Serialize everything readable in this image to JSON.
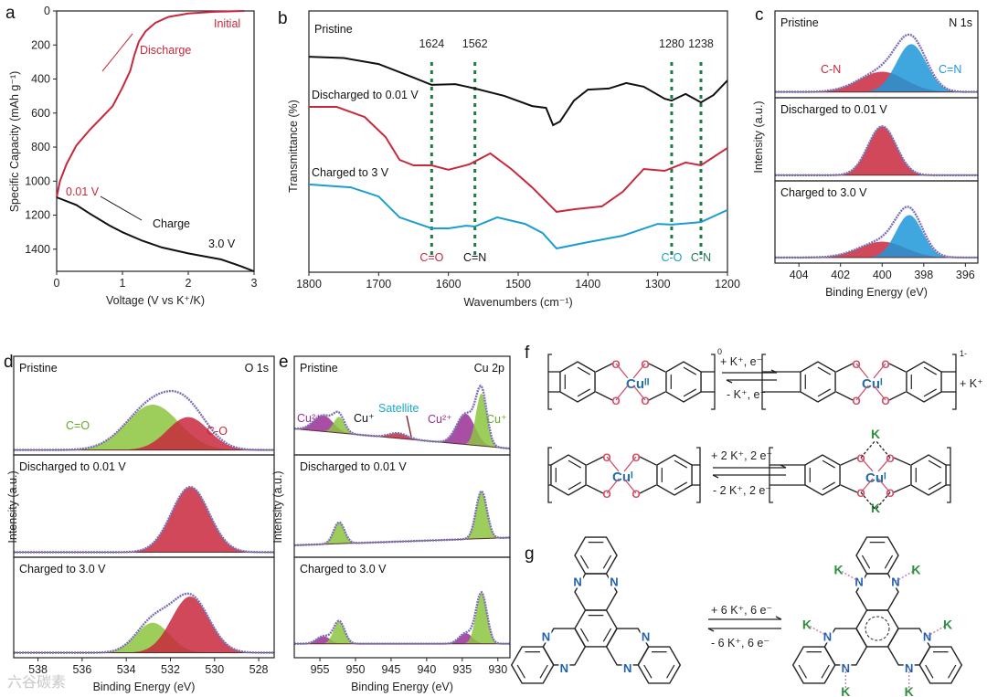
{
  "panel_labels": [
    "a",
    "b",
    "c",
    "d",
    "e",
    "f",
    "g"
  ],
  "colors": {
    "red": "#c8283c",
    "black": "#111111",
    "blue": "#1b9dcf",
    "green_dash": "#1f7a4a",
    "purple": "#9a2f95",
    "lime": "#8cc63f",
    "sky": "#1e98d8",
    "envelope": "#7b70b5",
    "cu": "#1f6fa8",
    "oxygen": "#d0506a",
    "nitrogen": "#1f5fb0",
    "potassium": "#2f8f3f"
  },
  "chart_data": [
    {
      "id": "a",
      "type": "line",
      "xlabel": "Voltage (V vs K⁺/K)",
      "ylabel": "Specific Capacity (mAh g⁻¹)",
      "xlim": [
        0,
        3
      ],
      "ylim": [
        0,
        1530
      ],
      "y_inverted": true,
      "xticks": [
        0,
        1,
        2,
        3
      ],
      "yticks": [
        0,
        200,
        400,
        600,
        800,
        1000,
        1200,
        1400
      ],
      "series": [
        {
          "name": "Discharge",
          "color": "red",
          "points": [
            [
              2.85,
              0
            ],
            [
              2.4,
              5
            ],
            [
              2.0,
              15
            ],
            [
              1.7,
              35
            ],
            [
              1.5,
              70
            ],
            [
              1.35,
              120
            ],
            [
              1.25,
              180
            ],
            [
              1.18,
              260
            ],
            [
              1.12,
              350
            ],
            [
              1.0,
              450
            ],
            [
              0.85,
              560
            ],
            [
              0.7,
              620
            ],
            [
              0.5,
              700
            ],
            [
              0.3,
              790
            ],
            [
              0.15,
              900
            ],
            [
              0.05,
              1000
            ],
            [
              0,
              1095
            ]
          ]
        },
        {
          "name": "Charge",
          "color": "black",
          "points": [
            [
              0,
              1095
            ],
            [
              0.3,
              1140
            ],
            [
              0.5,
              1190
            ],
            [
              0.8,
              1260
            ],
            [
              1.0,
              1300
            ],
            [
              1.3,
              1350
            ],
            [
              1.6,
              1390
            ],
            [
              2.0,
              1425
            ],
            [
              2.5,
              1460
            ],
            [
              2.8,
              1500
            ],
            [
              3.0,
              1530
            ]
          ]
        }
      ],
      "annotations": {
        "initial": "Initial",
        "discharge": "Discharge",
        "v001": "0.01 V",
        "charge": "Charge",
        "v30": "3.0 V"
      }
    },
    {
      "id": "b",
      "type": "line",
      "xlabel": "Wavenumbers (cm⁻¹)",
      "ylabel": "Transmittance (%)",
      "xlim": [
        1800,
        1200
      ],
      "ylim": [
        0,
        100
      ],
      "xticks": [
        1800,
        1700,
        1600,
        1500,
        1400,
        1300,
        1200
      ],
      "series": [
        {
          "name": "Pristine",
          "color": "black",
          "points": [
            [
              1800,
              82.5
            ],
            [
              1750,
              82
            ],
            [
              1700,
              79.7
            ],
            [
              1650,
              74.5
            ],
            [
              1624,
              71.7
            ],
            [
              1590,
              72
            ],
            [
              1562,
              70.3
            ],
            [
              1520,
              67.5
            ],
            [
              1480,
              63.6
            ],
            [
              1460,
              62.9
            ],
            [
              1450,
              56.3
            ],
            [
              1440,
              57.7
            ],
            [
              1420,
              65.7
            ],
            [
              1400,
              69.9
            ],
            [
              1370,
              70.3
            ],
            [
              1345,
              72.4
            ],
            [
              1320,
              71
            ],
            [
              1290,
              66.4
            ],
            [
              1280,
              65.7
            ],
            [
              1260,
              68.2
            ],
            [
              1238,
              65
            ],
            [
              1220,
              67.8
            ],
            [
              1200,
              73.4
            ]
          ]
        },
        {
          "name": "Discharged to 0.01 V",
          "color": "red",
          "points": [
            [
              1800,
              63.3
            ],
            [
              1760,
              63.3
            ],
            [
              1720,
              59.4
            ],
            [
              1690,
              51.7
            ],
            [
              1670,
              43
            ],
            [
              1650,
              40.9
            ],
            [
              1624,
              40.9
            ],
            [
              1600,
              39.2
            ],
            [
              1570,
              41.3
            ],
            [
              1540,
              45.5
            ],
            [
              1510,
              39.5
            ],
            [
              1480,
              32.5
            ],
            [
              1445,
              23.1
            ],
            [
              1420,
              24.1
            ],
            [
              1380,
              25.2
            ],
            [
              1350,
              30.8
            ],
            [
              1320,
              39.5
            ],
            [
              1290,
              38.8
            ],
            [
              1260,
              42
            ],
            [
              1238,
              40.9
            ],
            [
              1200,
              47.6
            ]
          ]
        },
        {
          "name": "Charged to 3 V",
          "color": "blue",
          "points": [
            [
              1800,
              33.6
            ],
            [
              1740,
              32.5
            ],
            [
              1700,
              29
            ],
            [
              1670,
              21
            ],
            [
              1624,
              16.8
            ],
            [
              1600,
              16.8
            ],
            [
              1575,
              17.8
            ],
            [
              1562,
              17.5
            ],
            [
              1530,
              21
            ],
            [
              1490,
              18.5
            ],
            [
              1465,
              15
            ],
            [
              1445,
              9.1
            ],
            [
              1400,
              11.5
            ],
            [
              1350,
              14
            ],
            [
              1300,
              18.5
            ],
            [
              1280,
              18.2
            ],
            [
              1238,
              19.2
            ],
            [
              1200,
              23.8
            ]
          ]
        }
      ],
      "markers": [
        {
          "x": 1624,
          "label": "1624",
          "bond": "C=O",
          "bond_color": "red"
        },
        {
          "x": 1562,
          "label": "1562",
          "bond": "C=N",
          "bond_color": "black"
        },
        {
          "x": 1280,
          "label": "1280",
          "bond": "C-O",
          "bond_color": "blue"
        },
        {
          "x": 1238,
          "label": "1238",
          "bond": "C-N",
          "bond_color": "green_dash"
        }
      ]
    },
    {
      "id": "c",
      "type": "area",
      "title": "N 1s",
      "xlabel": "Binding Energy (eV)",
      "ylabel": "Intensity (a.u.)",
      "xlim": [
        405.15,
        395.4
      ],
      "xticks": [
        404,
        402,
        400,
        398,
        396
      ],
      "panels": [
        {
          "name": "Pristine",
          "baseline": [
            0.05,
            0.05
          ],
          "peaks": [
            {
              "label": "C-N",
              "center": 400.0,
              "height": 0.33,
              "fwhm": 2.6,
              "color": "red"
            },
            {
              "label": "C=N",
              "center": 398.6,
              "height": 0.78,
              "fwhm": 1.7,
              "color": "sky"
            }
          ]
        },
        {
          "name": "Discharged to 0.01 V",
          "baseline": [
            0.05,
            0.05
          ],
          "peaks": [
            {
              "label": "C-N",
              "center": 400.0,
              "height": 0.85,
              "fwhm": 1.6,
              "color": "red"
            }
          ]
        },
        {
          "name": "Charged to 3.0 V",
          "baseline": [
            0.05,
            0.05
          ],
          "peaks": [
            {
              "label": "C-N",
              "center": 400.0,
              "height": 0.28,
              "fwhm": 2.6,
              "color": "red"
            },
            {
              "label": "C=N",
              "center": 398.7,
              "height": 0.75,
              "fwhm": 1.5,
              "color": "sky"
            }
          ]
        }
      ]
    },
    {
      "id": "d",
      "type": "area",
      "title": "O 1s",
      "xlabel": "Binding Energy (eV)",
      "ylabel": "Intensity (a.u.)",
      "xlim": [
        539.1,
        527.3
      ],
      "xticks": [
        538,
        536,
        534,
        532,
        530,
        528
      ],
      "panels": [
        {
          "name": "Pristine",
          "baseline": [
            0.03,
            0.03
          ],
          "peaks": [
            {
              "label": "C=O",
              "center": 532.8,
              "height": 0.62,
              "fwhm": 2.8,
              "color": "lime"
            },
            {
              "label": "C-O",
              "center": 531.2,
              "height": 0.45,
              "fwhm": 2.2,
              "color": "red"
            }
          ]
        },
        {
          "name": "Discharged to 0.01 V",
          "baseline": [
            0.03,
            0.03
          ],
          "peaks": [
            {
              "label": "C-O",
              "center": 531.1,
              "height": 0.85,
              "fwhm": 2.0,
              "color": "red"
            }
          ]
        },
        {
          "name": "Charged to 3.0 V",
          "baseline": [
            0.03,
            0.03
          ],
          "peaks": [
            {
              "label": "C=O",
              "center": 532.8,
              "height": 0.4,
              "fwhm": 1.8,
              "color": "lime"
            },
            {
              "label": "C-O",
              "center": 531.1,
              "height": 0.75,
              "fwhm": 2.0,
              "color": "red"
            }
          ]
        }
      ]
    },
    {
      "id": "e",
      "type": "area",
      "title": "Cu 2p",
      "xlabel": "Binding Energy (eV)",
      "ylabel": "Intensity (a.u.)",
      "xlim": [
        958.6,
        928.3
      ],
      "xticks": [
        955,
        950,
        945,
        940,
        935,
        930
      ],
      "panels": [
        {
          "name": "Pristine",
          "baseline": [
            0.32,
            0.05
          ],
          "peaks": [
            {
              "label": "Cu2+",
              "center": 954.5,
              "height": 0.22,
              "fwhm": 3.2,
              "color": "purple"
            },
            {
              "label": "Cu+",
              "center": 952.3,
              "height": 0.22,
              "fwhm": 1.8,
              "color": "lime"
            },
            {
              "label": "Satellite",
              "center": 944.0,
              "height": 0.07,
              "fwhm": 3.0,
              "color": "red"
            },
            {
              "label": "Cu2+",
              "center": 934.5,
              "height": 0.42,
              "fwhm": 3.0,
              "color": "purple"
            },
            {
              "label": "Cu+",
              "center": 932.3,
              "height": 0.72,
              "fwhm": 1.8,
              "color": "lime"
            }
          ]
        },
        {
          "name": "Discharged to 0.01 V",
          "baseline": [
            0.12,
            0.22
          ],
          "peaks": [
            {
              "label": "Cu+",
              "center": 952.3,
              "height": 0.28,
              "fwhm": 1.8,
              "color": "lime"
            },
            {
              "label": "Cu+",
              "center": 932.3,
              "height": 0.62,
              "fwhm": 1.8,
              "color": "lime"
            }
          ]
        },
        {
          "name": "Charged to 3.0 V",
          "baseline": [
            0.15,
            0.15
          ],
          "peaks": [
            {
              "label": "Cu2+",
              "center": 954.5,
              "height": 0.1,
              "fwhm": 2.2,
              "color": "purple"
            },
            {
              "label": "Cu+",
              "center": 952.3,
              "height": 0.3,
              "fwhm": 1.8,
              "color": "lime"
            },
            {
              "label": "Cu2+",
              "center": 934.5,
              "height": 0.14,
              "fwhm": 2.2,
              "color": "purple"
            },
            {
              "label": "Cu+",
              "center": 932.3,
              "height": 0.68,
              "fwhm": 1.8,
              "color": "lime"
            }
          ]
        }
      ]
    }
  ],
  "panel_c_labels": {
    "cn": "C-N",
    "ceqn": "C=N"
  },
  "panel_d_labels": {
    "ceqo": "C=O",
    "co": "C-O"
  },
  "panel_e_labels": {
    "cu2a": "Cu²⁺",
    "cua": "Cu⁺",
    "sat": "Satellite",
    "cu2b": "Cu²⁺",
    "cub": "Cu⁺"
  },
  "scheme_f": {
    "row1": {
      "left_cu": "Cuᴵᴵ",
      "right_cu": "Cuᴵ",
      "charge_left": "0",
      "charge_right": "1-",
      "forward": "+ K⁺,   e⁻",
      "reverse": "- K⁺,   e⁻",
      "product_extra": "+ K⁺"
    },
    "row2": {
      "left_cu": "Cuᴵ",
      "right_cu": "Cuᴵ",
      "forward": "+ 2 K⁺, 2 e⁻",
      "reverse": "- 2 K⁺, 2 e⁻",
      "k": "K"
    },
    "oxygen": "O"
  },
  "scheme_g": {
    "forward": "+ 6 K⁺,  6 e⁻",
    "reverse": "- 6 K⁺,  6 e⁻",
    "nitrogen": "N",
    "k": "K"
  },
  "watermark": "六谷碳素"
}
